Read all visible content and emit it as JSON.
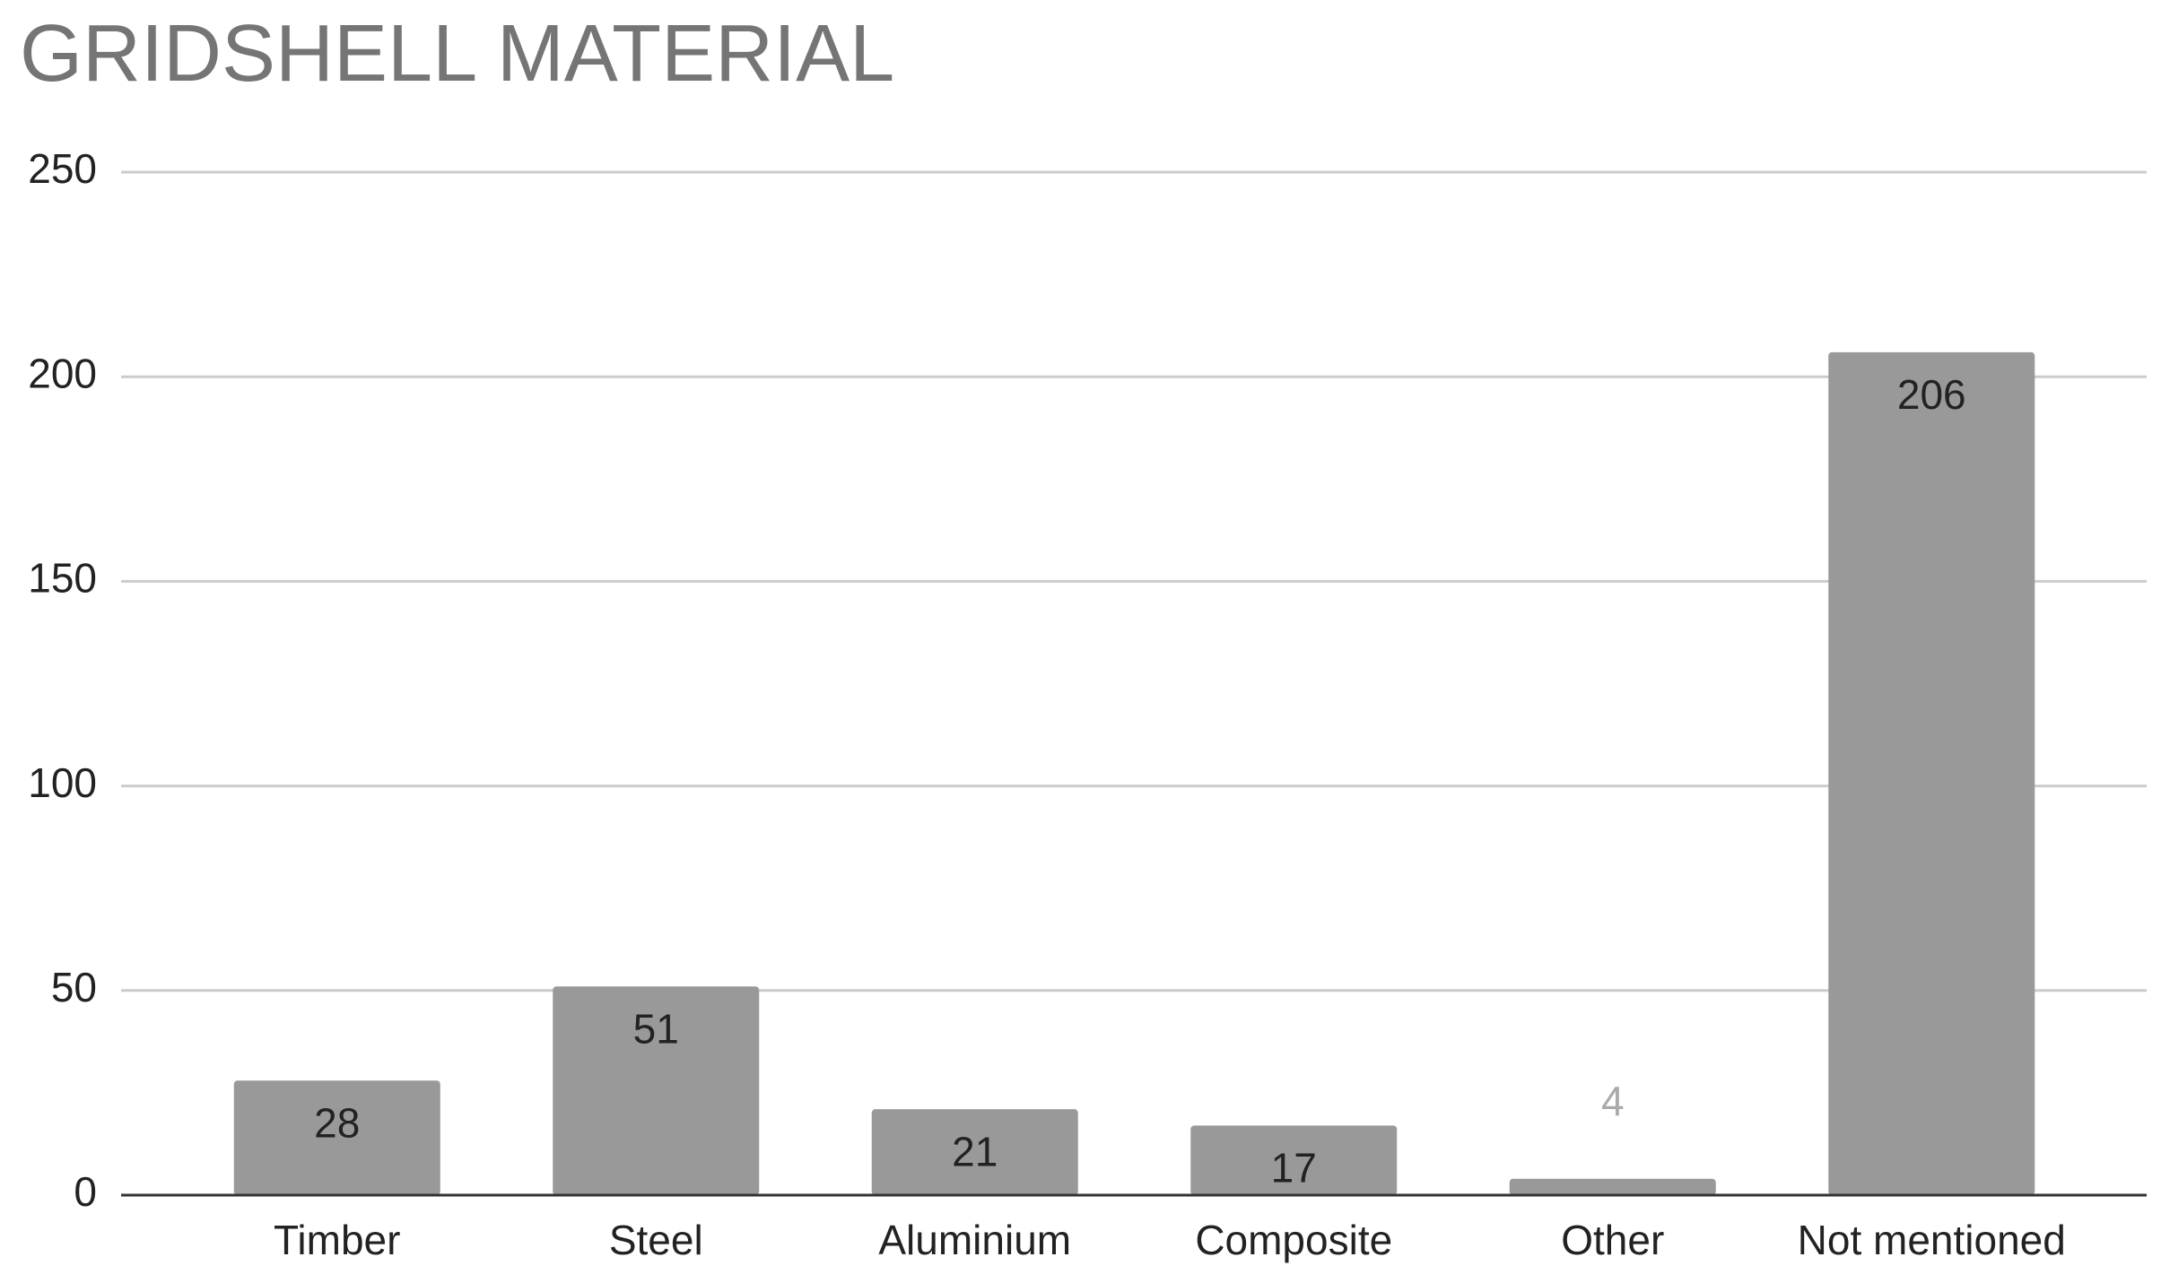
{
  "chart_data": {
    "type": "bar",
    "title": "GRIDSHELL MATERIAL",
    "categories": [
      "Timber",
      "Steel",
      "Aluminium",
      "Composite",
      "Other",
      "Not mentioned"
    ],
    "values": [
      28,
      51,
      21,
      17,
      4,
      206
    ],
    "color": "#999999",
    "ylim": [
      0,
      250
    ],
    "yticks": [
      0,
      50,
      100,
      150,
      200,
      250
    ],
    "grid": true
  }
}
